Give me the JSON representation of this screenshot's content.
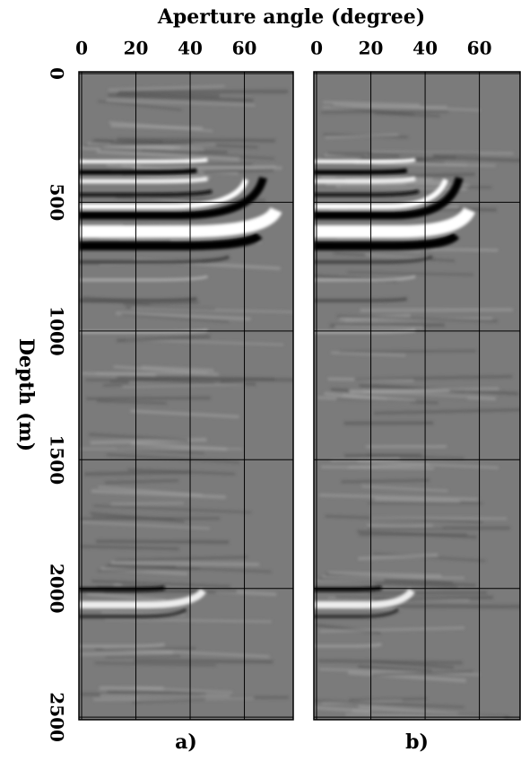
{
  "chart_data": [
    {
      "type": "image",
      "title": "Aperture angle (degree)",
      "ylabel": "Depth (m)",
      "label": "a)",
      "xlim": [
        -1,
        78
      ],
      "xticks": [
        0,
        20,
        40,
        60
      ],
      "ylim": [
        -7,
        2510
      ],
      "yticks": [
        0,
        500,
        1000,
        1500,
        2000,
        2500
      ],
      "grid": true
    },
    {
      "type": "image",
      "label": "b)",
      "xlim": [
        -1,
        75
      ],
      "xticks": [
        0,
        20,
        40,
        60
      ],
      "ylim": [
        -7,
        2510
      ],
      "grid": true
    }
  ]
}
